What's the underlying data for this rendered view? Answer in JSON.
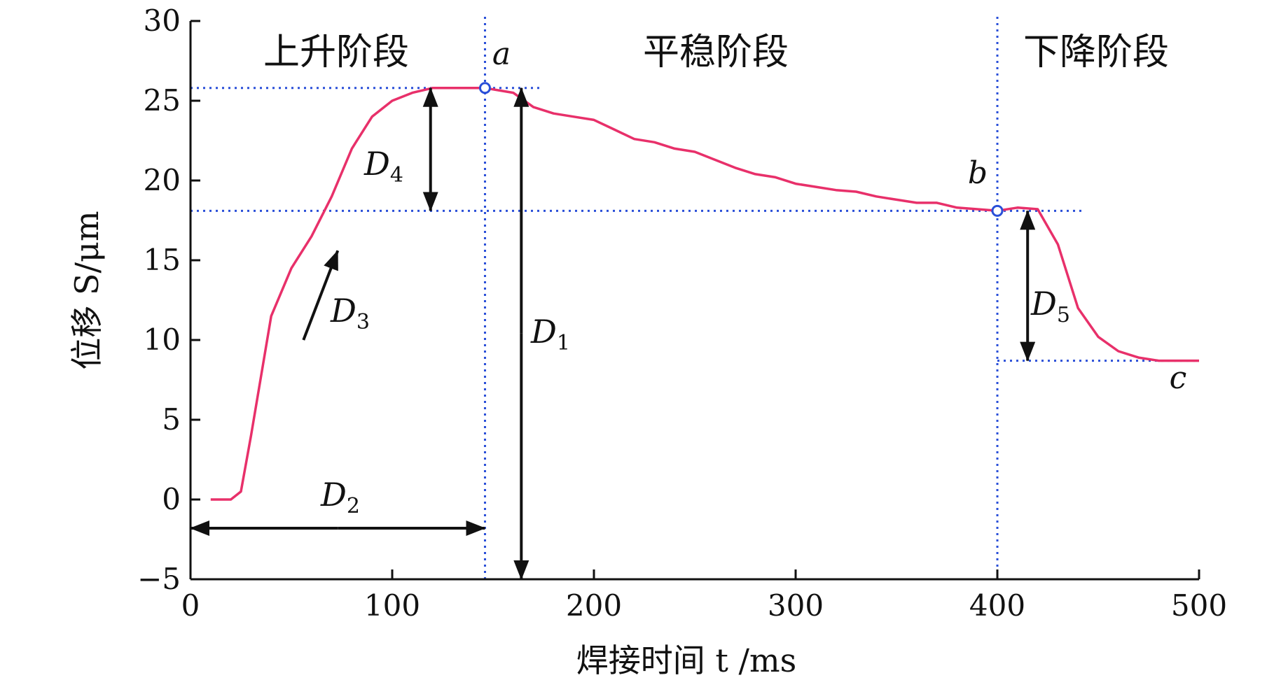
{
  "chart_data": {
    "type": "line",
    "xlabel": "焊接时间 t /ms",
    "ylabel": "位移 S/μm",
    "xlim": [
      0,
      500
    ],
    "ylim": [
      -5,
      30
    ],
    "xticks": [
      0,
      100,
      200,
      300,
      400,
      500
    ],
    "yticks": [
      -5,
      0,
      5,
      10,
      15,
      20,
      25,
      30
    ],
    "phases": [
      "上升阶段",
      "平稳阶段",
      "下降阶段"
    ],
    "line_color": "#e8306a",
    "guide_color": "#2a4fd8",
    "series": [
      {
        "x": [
          10,
          20,
          25,
          30,
          40,
          50,
          60,
          70,
          80,
          90,
          100,
          110,
          120,
          130,
          140,
          146,
          160,
          170,
          180,
          190,
          200,
          210,
          220,
          230,
          240,
          250,
          260,
          270,
          280,
          290,
          300,
          310,
          320,
          330,
          340,
          350,
          360,
          370,
          380,
          390,
          400,
          410,
          420,
          430,
          440,
          450,
          460,
          470,
          480,
          500
        ],
        "y": [
          0,
          0,
          0.5,
          4,
          11.5,
          14.5,
          16.5,
          19,
          22,
          24,
          25,
          25.5,
          25.8,
          25.8,
          25.8,
          25.8,
          25.5,
          24.6,
          24.2,
          24.0,
          23.8,
          23.2,
          22.6,
          22.4,
          22.0,
          21.8,
          21.3,
          20.8,
          20.4,
          20.2,
          19.8,
          19.6,
          19.4,
          19.3,
          19.0,
          18.8,
          18.6,
          18.6,
          18.3,
          18.2,
          18.1,
          18.3,
          18.2,
          16.0,
          12.0,
          10.2,
          9.3,
          8.9,
          8.7,
          8.7
        ]
      }
    ],
    "points": [
      {
        "label": "a",
        "x": 146,
        "y": 25.8
      },
      {
        "label": "b",
        "x": 400,
        "y": 18.1
      },
      {
        "label": "c",
        "x": 490,
        "y": 8.7
      }
    ],
    "guides": {
      "v_a_x": 146,
      "v_b_x": 400,
      "h_top_y": 25.8,
      "h_top_range": [
        0,
        174
      ],
      "h_mid_y": 18.1,
      "h_mid_range": [
        0,
        442
      ],
      "h_low_y": 8.7,
      "h_low_range": [
        400,
        500
      ]
    },
    "annotations": [
      {
        "name": "D",
        "sub": "1"
      },
      {
        "name": "D",
        "sub": "2"
      },
      {
        "name": "D",
        "sub": "3"
      },
      {
        "name": "D",
        "sub": "4"
      },
      {
        "name": "D",
        "sub": "5"
      }
    ]
  }
}
